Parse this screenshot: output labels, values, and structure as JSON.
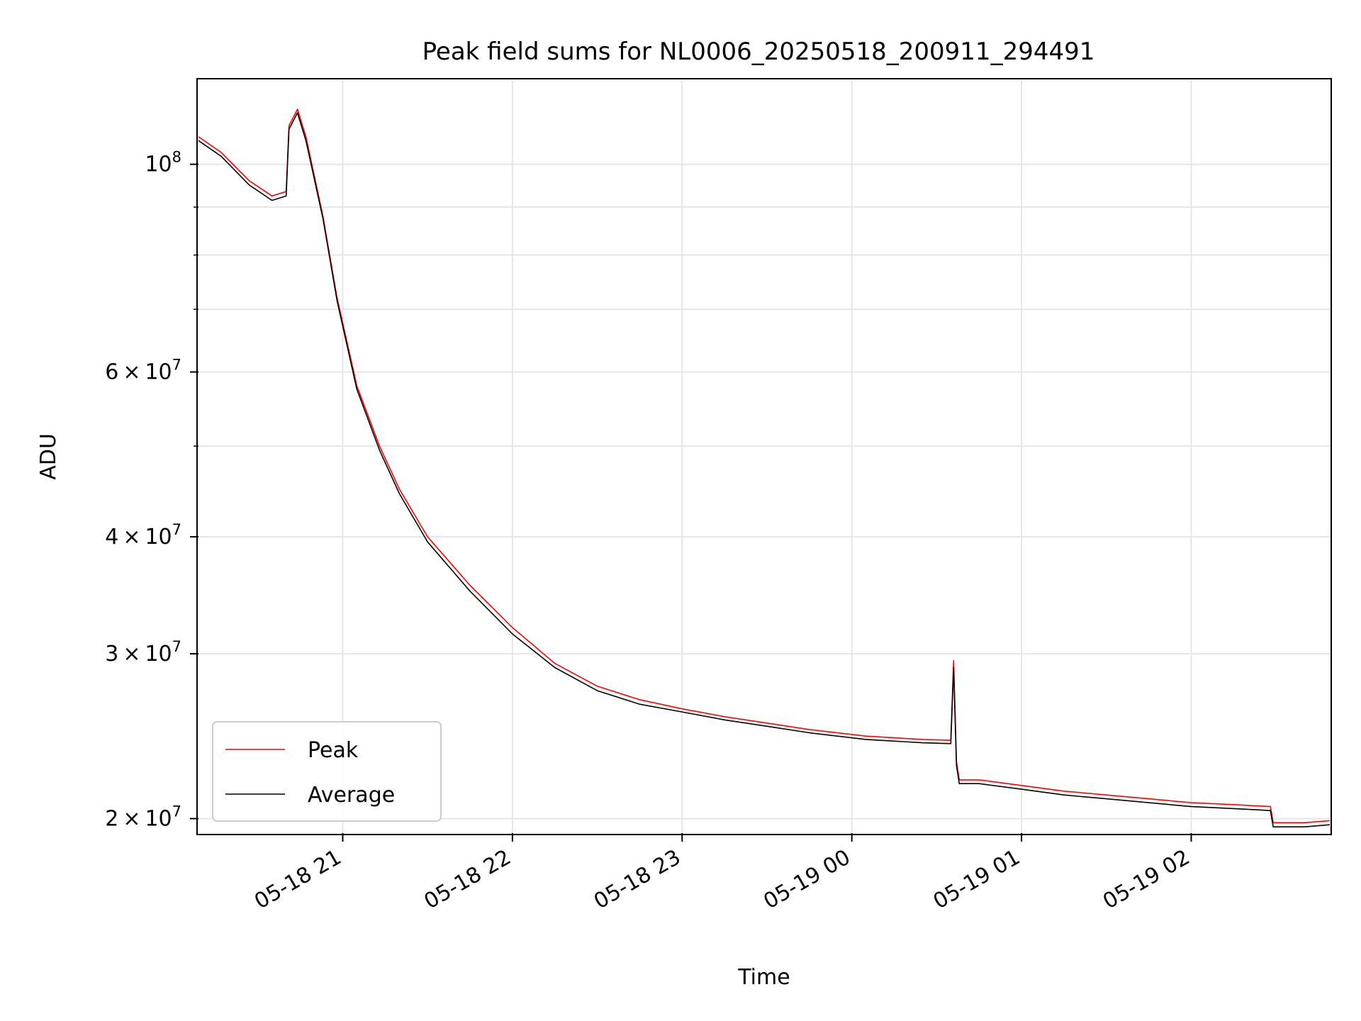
{
  "chart_data": {
    "type": "line",
    "title": "Peak field sums for NL0006_20250518_200911_294491",
    "xlabel": "Time",
    "ylabel": "ADU",
    "yscale": "log",
    "ylim": [
      19300000,
      123000000
    ],
    "xlim": [
      "2025-05-18 20:09",
      "2025-05-19 02:49"
    ],
    "grid": true,
    "legend_position": "lower-left",
    "x_ticks": [
      {
        "x": "2025-05-18 21:00",
        "label": "05-18 21"
      },
      {
        "x": "2025-05-18 22:00",
        "label": "05-18 22"
      },
      {
        "x": "2025-05-18 23:00",
        "label": "05-18 23"
      },
      {
        "x": "2025-05-19 00:00",
        "label": "05-19 00"
      },
      {
        "x": "2025-05-19 01:00",
        "label": "05-19 01"
      },
      {
        "x": "2025-05-19 02:00",
        "label": "05-19 02"
      }
    ],
    "y_major_ticks": [
      {
        "value": 20000000,
        "mantissa": "2",
        "exponent": "7"
      },
      {
        "value": 30000000,
        "mantissa": "3",
        "exponent": "7"
      },
      {
        "value": 40000000,
        "mantissa": "4",
        "exponent": "7"
      },
      {
        "value": 60000000,
        "mantissa": "6",
        "exponent": "7"
      },
      {
        "value": 100000000,
        "mantissa": "",
        "exponent": "8"
      }
    ],
    "y_times_symbol": "×",
    "y_base": "10",
    "y_minor_gridlines": [
      50000000,
      70000000,
      80000000,
      90000000
    ],
    "series": [
      {
        "name": "Peak",
        "color": "#ff0000",
        "points": [
          [
            "2025-05-18 20:09",
            107000000
          ],
          [
            "2025-05-18 20:17",
            103000000
          ],
          [
            "2025-05-18 20:27",
            96000000
          ],
          [
            "2025-05-18 20:35",
            92500000
          ],
          [
            "2025-05-18 20:40",
            93500000
          ],
          [
            "2025-05-18 20:41",
            110000000
          ],
          [
            "2025-05-18 20:44",
            114500000
          ],
          [
            "2025-05-18 20:47",
            107000000
          ],
          [
            "2025-05-18 20:53",
            88000000
          ],
          [
            "2025-05-18 20:58",
            72000000
          ],
          [
            "2025-05-18 21:05",
            58000000
          ],
          [
            "2025-05-18 21:13",
            50000000
          ],
          [
            "2025-05-18 21:20",
            45000000
          ],
          [
            "2025-05-18 21:30",
            40000000
          ],
          [
            "2025-05-18 21:45",
            35500000
          ],
          [
            "2025-05-18 22:00",
            32000000
          ],
          [
            "2025-05-18 22:15",
            29300000
          ],
          [
            "2025-05-18 22:30",
            27700000
          ],
          [
            "2025-05-18 22:45",
            26800000
          ],
          [
            "2025-05-18 23:00",
            26200000
          ],
          [
            "2025-05-18 23:15",
            25700000
          ],
          [
            "2025-05-18 23:30",
            25300000
          ],
          [
            "2025-05-18 23:45",
            24900000
          ],
          [
            "2025-05-19 00:05",
            24500000
          ],
          [
            "2025-05-19 00:25",
            24300000
          ],
          [
            "2025-05-19 00:35",
            24250000
          ],
          [
            "2025-05-19 00:36",
            29500000
          ],
          [
            "2025-05-19 00:37",
            23000000
          ],
          [
            "2025-05-19 00:38",
            22000000
          ],
          [
            "2025-05-19 00:45",
            22000000
          ],
          [
            "2025-05-19 01:00",
            21700000
          ],
          [
            "2025-05-19 01:15",
            21400000
          ],
          [
            "2025-05-19 01:30",
            21200000
          ],
          [
            "2025-05-19 01:45",
            21000000
          ],
          [
            "2025-05-19 02:00",
            20800000
          ],
          [
            "2025-05-19 02:15",
            20700000
          ],
          [
            "2025-05-19 02:28",
            20600000
          ],
          [
            "2025-05-19 02:29",
            19800000
          ],
          [
            "2025-05-19 02:40",
            19800000
          ],
          [
            "2025-05-19 02:49",
            19900000
          ]
        ]
      },
      {
        "name": "Average",
        "color": "#000000",
        "points": [
          [
            "2025-05-18 20:09",
            106000000
          ],
          [
            "2025-05-18 20:17",
            102000000
          ],
          [
            "2025-05-18 20:27",
            95000000
          ],
          [
            "2025-05-18 20:35",
            91500000
          ],
          [
            "2025-05-18 20:40",
            92500000
          ],
          [
            "2025-05-18 20:41",
            109000000
          ],
          [
            "2025-05-18 20:44",
            113500000
          ],
          [
            "2025-05-18 20:47",
            106000000
          ],
          [
            "2025-05-18 20:53",
            87500000
          ],
          [
            "2025-05-18 20:58",
            71500000
          ],
          [
            "2025-05-18 21:05",
            57500000
          ],
          [
            "2025-05-18 21:13",
            49500000
          ],
          [
            "2025-05-18 21:20",
            44500000
          ],
          [
            "2025-05-18 21:30",
            39500000
          ],
          [
            "2025-05-18 21:45",
            35000000
          ],
          [
            "2025-05-18 22:00",
            31500000
          ],
          [
            "2025-05-18 22:15",
            29000000
          ],
          [
            "2025-05-18 22:30",
            27400000
          ],
          [
            "2025-05-18 22:45",
            26500000
          ],
          [
            "2025-05-18 23:00",
            26000000
          ],
          [
            "2025-05-18 23:15",
            25500000
          ],
          [
            "2025-05-18 23:30",
            25100000
          ],
          [
            "2025-05-18 23:45",
            24700000
          ],
          [
            "2025-05-19 00:05",
            24300000
          ],
          [
            "2025-05-19 00:25",
            24100000
          ],
          [
            "2025-05-19 00:35",
            24050000
          ],
          [
            "2025-05-19 00:36",
            29000000
          ],
          [
            "2025-05-19 00:37",
            22800000
          ],
          [
            "2025-05-19 00:38",
            21800000
          ],
          [
            "2025-05-19 00:45",
            21800000
          ],
          [
            "2025-05-19 01:00",
            21500000
          ],
          [
            "2025-05-19 01:15",
            21200000
          ],
          [
            "2025-05-19 01:30",
            21000000
          ],
          [
            "2025-05-19 01:45",
            20800000
          ],
          [
            "2025-05-19 02:00",
            20600000
          ],
          [
            "2025-05-19 02:15",
            20500000
          ],
          [
            "2025-05-19 02:28",
            20400000
          ],
          [
            "2025-05-19 02:29",
            19600000
          ],
          [
            "2025-05-19 02:40",
            19600000
          ],
          [
            "2025-05-19 02:49",
            19700000
          ]
        ]
      }
    ]
  }
}
